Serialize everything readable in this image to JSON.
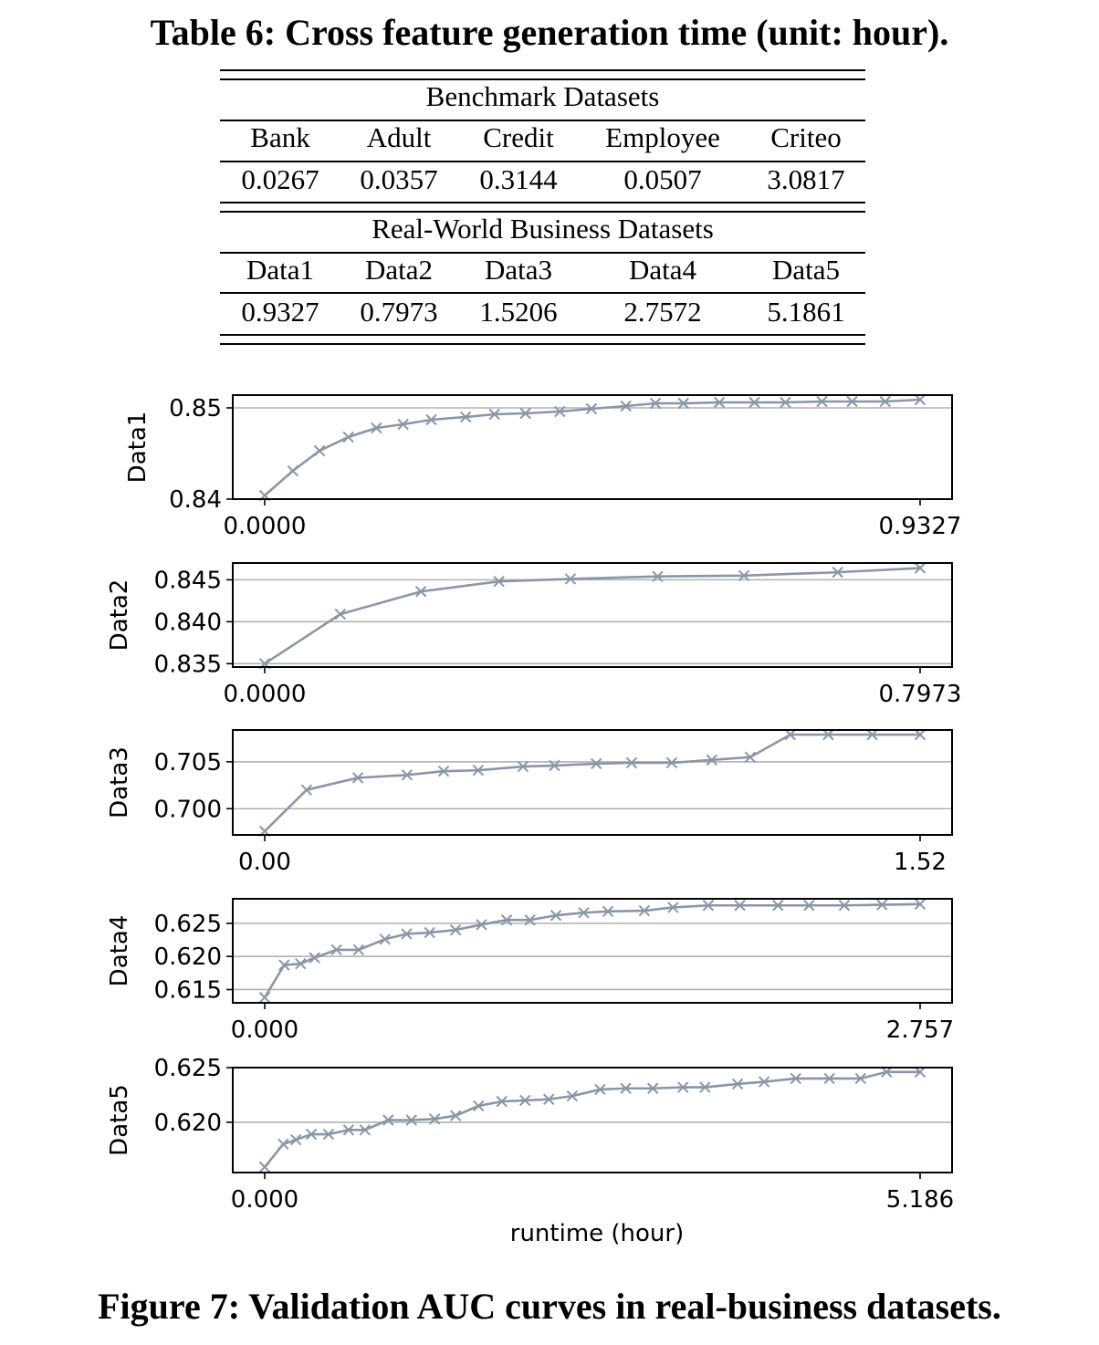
{
  "table": {
    "title": "Table 6: Cross feature generation time (unit: hour).",
    "groups": [
      {
        "label": "Benchmark Datasets",
        "headers": [
          "Bank",
          "Adult",
          "Credit",
          "Employee",
          "Criteo"
        ],
        "values": [
          "0.0267",
          "0.0357",
          "0.3144",
          "0.0507",
          "3.0817"
        ]
      },
      {
        "label": "Real-World Business Datasets",
        "headers": [
          "Data1",
          "Data2",
          "Data3",
          "Data4",
          "Data5"
        ],
        "values": [
          "0.9327",
          "0.7973",
          "1.5206",
          "2.7572",
          "5.1861"
        ]
      }
    ]
  },
  "figure": {
    "caption": "Figure 7: Validation AUC curves in real-business datasets.",
    "line_color": "#8a96a6"
  },
  "chart_data": [
    {
      "type": "line",
      "ylabel": "Data1",
      "xlabel": "",
      "xlim": [
        0,
        0.9327
      ],
      "ylim": [
        0.84,
        0.8514
      ],
      "xticks": [
        0,
        0.9327
      ],
      "xtick_labels": [
        "0.0000",
        "0.9327"
      ],
      "yticks": [
        0.84,
        0.85
      ],
      "ytick_labels": [
        "0.84",
        "0.85"
      ],
      "grid": true,
      "x": [
        0,
        0.04,
        0.078,
        0.119,
        0.159,
        0.197,
        0.237,
        0.286,
        0.327,
        0.371,
        0.42,
        0.465,
        0.514,
        0.556,
        0.596,
        0.647,
        0.697,
        0.741,
        0.793,
        0.836,
        0.883,
        0.9327
      ],
      "y": [
        0.8404,
        0.8431,
        0.8453,
        0.8468,
        0.8478,
        0.8482,
        0.8487,
        0.849,
        0.8493,
        0.8494,
        0.8496,
        0.8499,
        0.8502,
        0.8505,
        0.8505,
        0.8506,
        0.8506,
        0.8506,
        0.8507,
        0.8507,
        0.8507,
        0.8509
      ]
    },
    {
      "type": "line",
      "ylabel": "Data2",
      "xlabel": "",
      "xlim": [
        0,
        0.7973
      ],
      "ylim": [
        0.8346,
        0.847
      ],
      "xticks": [
        0,
        0.7973
      ],
      "xtick_labels": [
        "0.0000",
        "0.7973"
      ],
      "yticks": [
        0.835,
        0.84,
        0.845
      ],
      "ytick_labels": [
        "0.835",
        "0.840",
        "0.845"
      ],
      "grid": true,
      "x": [
        0,
        0.092,
        0.19,
        0.285,
        0.372,
        0.478,
        0.583,
        0.697,
        0.7973
      ],
      "y": [
        0.835,
        0.8409,
        0.8436,
        0.8448,
        0.8451,
        0.8454,
        0.8455,
        0.8459,
        0.8464
      ]
    },
    {
      "type": "line",
      "ylabel": "Data3",
      "xlabel": "",
      "xlim": [
        0,
        1.52
      ],
      "ylim": [
        0.6972,
        0.7084
      ],
      "xticks": [
        0,
        1.52
      ],
      "xtick_labels": [
        "0.00",
        "1.52"
      ],
      "yticks": [
        0.7,
        0.705
      ],
      "ytick_labels": [
        "0.700",
        "0.705"
      ],
      "grid": true,
      "x": [
        0,
        0.097,
        0.216,
        0.33,
        0.415,
        0.495,
        0.599,
        0.672,
        0.769,
        0.851,
        0.944,
        1.037,
        1.126,
        1.219,
        1.307,
        1.409,
        1.52
      ],
      "y": [
        0.6976,
        0.702,
        0.7033,
        0.7036,
        0.704,
        0.7041,
        0.7045,
        0.7046,
        0.7048,
        0.7049,
        0.7049,
        0.7052,
        0.7055,
        0.7079,
        0.7079,
        0.7079,
        0.7079
      ]
    },
    {
      "type": "line",
      "ylabel": "Data4",
      "xlabel": "",
      "xlim": [
        0,
        2.757
      ],
      "ylim": [
        0.613,
        0.6287
      ],
      "xticks": [
        0,
        2.757
      ],
      "xtick_labels": [
        "0.000",
        "2.757"
      ],
      "yticks": [
        0.615,
        0.62,
        0.625
      ],
      "ytick_labels": [
        "0.615",
        "0.620",
        "0.625"
      ],
      "grid": true,
      "x": [
        0,
        0.082,
        0.151,
        0.21,
        0.302,
        0.395,
        0.506,
        0.597,
        0.694,
        0.803,
        0.912,
        1.018,
        1.116,
        1.225,
        1.342,
        1.444,
        1.597,
        1.718,
        1.866,
        1.999,
        2.159,
        2.29,
        2.438,
        2.597,
        2.757
      ],
      "y": [
        0.6138,
        0.6187,
        0.6189,
        0.6198,
        0.621,
        0.621,
        0.6226,
        0.6234,
        0.6236,
        0.624,
        0.6248,
        0.6255,
        0.6255,
        0.6262,
        0.6266,
        0.6268,
        0.6269,
        0.6274,
        0.6277,
        0.6277,
        0.6277,
        0.6277,
        0.6277,
        0.6278,
        0.6279
      ]
    },
    {
      "type": "line",
      "ylabel": "Data5",
      "xlabel": "runtime (hour)",
      "xlim": [
        0,
        5.186
      ],
      "ylim": [
        0.6154,
        0.625
      ],
      "xticks": [
        0,
        5.186
      ],
      "xtick_labels": [
        "0.000",
        "5.186"
      ],
      "yticks": [
        0.62,
        0.625
      ],
      "ytick_labels": [
        "0.620",
        "0.625"
      ],
      "grid": true,
      "x": [
        0,
        0.147,
        0.247,
        0.369,
        0.505,
        0.664,
        0.793,
        0.977,
        1.161,
        1.345,
        1.511,
        1.692,
        1.876,
        2.06,
        2.248,
        2.433,
        2.654,
        2.857,
        3.071,
        3.31,
        3.484,
        3.742,
        3.952,
        4.202,
        4.468,
        4.715,
        4.921,
        5.186
      ],
      "y": [
        0.6159,
        0.618,
        0.6184,
        0.6189,
        0.6189,
        0.6193,
        0.6193,
        0.6202,
        0.6202,
        0.6203,
        0.6206,
        0.6215,
        0.6219,
        0.622,
        0.6221,
        0.6224,
        0.623,
        0.6231,
        0.6231,
        0.6232,
        0.6232,
        0.6235,
        0.6237,
        0.624,
        0.624,
        0.624,
        0.6246,
        0.6246
      ]
    }
  ]
}
